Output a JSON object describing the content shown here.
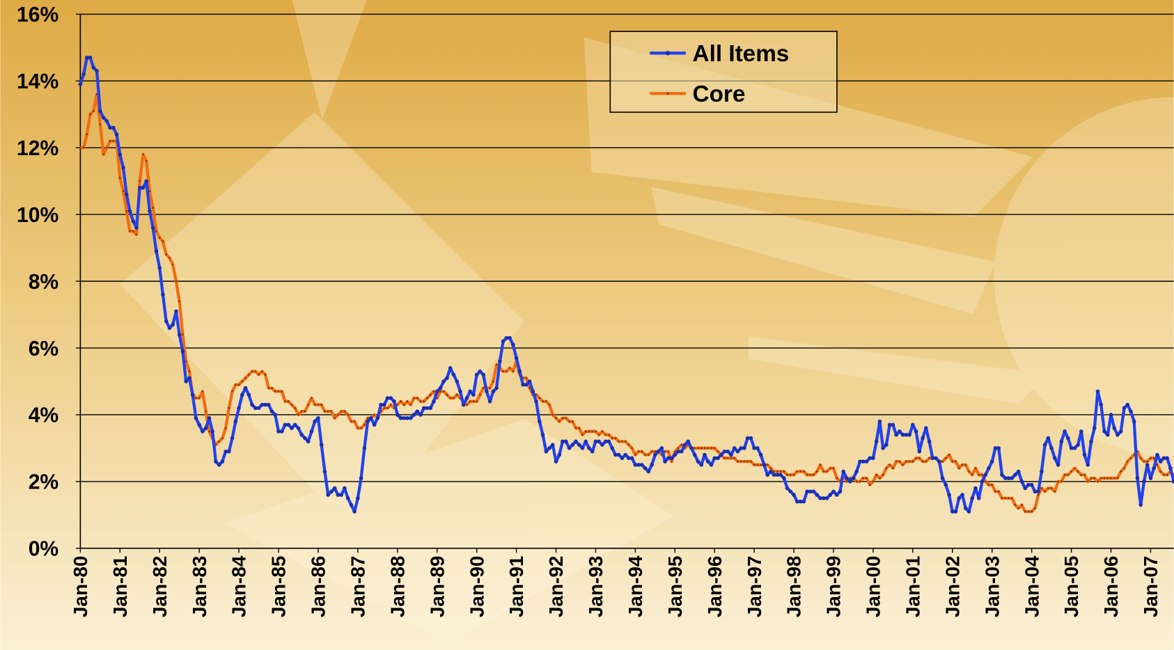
{
  "chart_data": {
    "type": "line",
    "categories": [
      "Jan-80",
      null,
      null,
      null,
      null,
      null,
      null,
      null,
      null,
      null,
      null,
      null,
      "Jan-81",
      null,
      null,
      null,
      null,
      null,
      null,
      null,
      null,
      null,
      null,
      null,
      "Jan-82",
      null,
      null,
      null,
      null,
      null,
      null,
      null,
      null,
      null,
      null,
      null,
      "Jan-83",
      null,
      null,
      null,
      null,
      null,
      null,
      null,
      null,
      null,
      null,
      null,
      "Jan-84",
      null,
      null,
      null,
      null,
      null,
      null,
      null,
      null,
      null,
      null,
      null,
      "Jan-85",
      null,
      null,
      null,
      null,
      null,
      null,
      null,
      null,
      null,
      null,
      null,
      "Jan-86",
      null,
      null,
      null,
      null,
      null,
      null,
      null,
      null,
      null,
      null,
      null,
      "Jan-87",
      null,
      null,
      null,
      null,
      null,
      null,
      null,
      null,
      null,
      null,
      null,
      "Jan-88",
      null,
      null,
      null,
      null,
      null,
      null,
      null,
      null,
      null,
      null,
      null,
      "Jan-89",
      null,
      null,
      null,
      null,
      null,
      null,
      null,
      null,
      null,
      null,
      null,
      "Jan-90",
      null,
      null,
      null,
      null,
      null,
      null,
      null,
      null,
      null,
      null,
      null,
      "Jan-91",
      null,
      null,
      null,
      null,
      null,
      null,
      null,
      null,
      null,
      null,
      null,
      "Jan-92",
      null,
      null,
      null,
      null,
      null,
      null,
      null,
      null,
      null,
      null,
      null,
      "Jan-93",
      null,
      null,
      null,
      null,
      null,
      null,
      null,
      null,
      null,
      null,
      null,
      "Jan-94",
      null,
      null,
      null,
      null,
      null,
      null,
      null,
      null,
      null,
      null,
      null,
      "Jan-95",
      null,
      null,
      null,
      null,
      null,
      null,
      null,
      null,
      null,
      null,
      null,
      "Jan-96",
      null,
      null,
      null,
      null,
      null,
      null,
      null,
      null,
      null,
      null,
      null,
      "Jan-97",
      null,
      null,
      null,
      null,
      null,
      null,
      null,
      null,
      null,
      null,
      null,
      "Jan-98",
      null,
      null,
      null,
      null,
      null,
      null,
      null,
      null,
      null,
      null,
      null,
      "Jan-99",
      null,
      null,
      null,
      null,
      null,
      null,
      null,
      null,
      null,
      null,
      null,
      "Jan-00",
      null,
      null,
      null,
      null,
      null,
      null,
      null,
      null,
      null,
      null,
      null,
      "Jan-01",
      null,
      null,
      null,
      null,
      null,
      null,
      null,
      null,
      null,
      null,
      null,
      "Jan-02",
      null,
      null,
      null,
      null,
      null,
      null,
      null,
      null,
      null,
      null,
      null,
      "Jan-03",
      null,
      null,
      null,
      null,
      null,
      null,
      null,
      null,
      null,
      null,
      null,
      "Jan-04",
      null,
      null,
      null,
      null,
      null,
      null,
      null,
      null,
      null,
      null,
      null,
      "Jan-05",
      null,
      null,
      null,
      null,
      null,
      null,
      null,
      null,
      null,
      null,
      null,
      "Jan-06",
      null,
      null,
      null,
      null,
      null,
      null,
      null,
      null,
      null,
      null,
      null,
      "Jan-07",
      null,
      null,
      null,
      null,
      null,
      null,
      null
    ],
    "series": [
      {
        "name": "All Items",
        "color": "#2142f0",
        "values": [
          13.9,
          14.2,
          14.7,
          14.7,
          14.4,
          14.3,
          13.1,
          12.9,
          12.8,
          12.6,
          12.6,
          12.4,
          11.8,
          11.4,
          10.6,
          10.1,
          9.8,
          9.6,
          10.8,
          10.8,
          11.0,
          10.1,
          9.6,
          8.9,
          8.4,
          7.6,
          6.8,
          6.6,
          6.7,
          7.1,
          6.4,
          5.9,
          5.0,
          5.1,
          4.6,
          3.9,
          3.7,
          3.5,
          3.6,
          3.9,
          3.5,
          2.6,
          2.5,
          2.6,
          2.9,
          2.9,
          3.3,
          3.8,
          4.2,
          4.6,
          4.8,
          4.6,
          4.3,
          4.2,
          4.2,
          4.3,
          4.3,
          4.3,
          4.1,
          4.0,
          3.5,
          3.5,
          3.7,
          3.7,
          3.6,
          3.7,
          3.6,
          3.4,
          3.3,
          3.2,
          3.5,
          3.8,
          3.9,
          3.1,
          2.3,
          1.6,
          1.7,
          1.8,
          1.6,
          1.6,
          1.8,
          1.5,
          1.3,
          1.1,
          1.5,
          2.1,
          3.0,
          3.8,
          3.9,
          3.7,
          3.9,
          4.3,
          4.3,
          4.5,
          4.5,
          4.4,
          4.0,
          3.9,
          3.9,
          3.9,
          3.9,
          4.0,
          4.1,
          4.0,
          4.2,
          4.2,
          4.2,
          4.4,
          4.7,
          4.8,
          5.0,
          5.1,
          5.4,
          5.2,
          5.0,
          4.7,
          4.3,
          4.5,
          4.7,
          4.6,
          5.2,
          5.3,
          5.2,
          4.7,
          4.4,
          4.7,
          4.8,
          5.6,
          6.2,
          6.3,
          6.3,
          6.1,
          5.7,
          5.3,
          4.9,
          4.9,
          5.0,
          4.7,
          4.4,
          3.8,
          3.4,
          2.9,
          3.0,
          3.1,
          2.6,
          2.8,
          3.2,
          3.2,
          3.0,
          3.1,
          3.2,
          3.1,
          3.0,
          3.2,
          3.0,
          2.9,
          3.2,
          3.2,
          3.1,
          3.2,
          3.2,
          3.0,
          2.8,
          2.8,
          2.7,
          2.8,
          2.7,
          2.7,
          2.5,
          2.5,
          2.5,
          2.4,
          2.3,
          2.5,
          2.8,
          2.9,
          3.0,
          2.6,
          2.7,
          2.7,
          2.8,
          2.9,
          2.9,
          3.1,
          3.2,
          3.0,
          2.8,
          2.6,
          2.5,
          2.8,
          2.6,
          2.5,
          2.7,
          2.7,
          2.8,
          2.9,
          2.9,
          2.8,
          3.0,
          2.9,
          3.0,
          3.0,
          3.3,
          3.3,
          3.0,
          3.0,
          2.8,
          2.5,
          2.2,
          2.3,
          2.2,
          2.2,
          2.2,
          2.1,
          1.8,
          1.7,
          1.6,
          1.4,
          1.4,
          1.4,
          1.7,
          1.7,
          1.7,
          1.6,
          1.5,
          1.5,
          1.5,
          1.6,
          1.7,
          1.6,
          1.7,
          2.3,
          2.1,
          2.0,
          2.1,
          2.3,
          2.6,
          2.6,
          2.6,
          2.7,
          2.7,
          3.2,
          3.8,
          3.0,
          3.1,
          3.7,
          3.7,
          3.4,
          3.5,
          3.4,
          3.4,
          3.4,
          3.7,
          3.5,
          2.9,
          3.3,
          3.6,
          3.2,
          2.7,
          2.7,
          2.6,
          2.1,
          1.9,
          1.6,
          1.1,
          1.1,
          1.5,
          1.6,
          1.2,
          1.1,
          1.5,
          1.8,
          1.5,
          2.0,
          2.2,
          2.4,
          2.6,
          3.0,
          3.0,
          2.2,
          2.1,
          2.1,
          2.1,
          2.2,
          2.3,
          2.0,
          1.8,
          1.9,
          1.9,
          1.7,
          1.7,
          2.3,
          3.1,
          3.3,
          3.0,
          2.7,
          2.5,
          3.2,
          3.5,
          3.3,
          3.0,
          3.0,
          3.1,
          3.5,
          2.8,
          2.5,
          3.2,
          3.6,
          4.7,
          4.3,
          3.5,
          3.4,
          4.0,
          3.6,
          3.4,
          3.5,
          4.2,
          4.3,
          4.1,
          3.8,
          2.1,
          1.3,
          2.0,
          2.5,
          2.1,
          2.4,
          2.8,
          2.6,
          2.7,
          2.7,
          2.4,
          2.0
        ]
      },
      {
        "name": "Core",
        "color": "#f26b10",
        "values": [
          12.0,
          12.0,
          12.4,
          13.0,
          13.1,
          13.6,
          12.7,
          11.8,
          12.0,
          12.2,
          12.2,
          12.2,
          11.1,
          10.7,
          10.1,
          9.5,
          9.5,
          9.4,
          11.0,
          11.8,
          11.6,
          10.7,
          10.2,
          9.5,
          9.3,
          9.2,
          8.8,
          8.7,
          8.5,
          8.0,
          7.4,
          6.4,
          5.6,
          5.3,
          4.6,
          4.5,
          4.5,
          4.7,
          4.1,
          3.5,
          3.3,
          3.1,
          3.2,
          3.3,
          3.6,
          4.2,
          4.7,
          4.9,
          4.9,
          5.0,
          5.1,
          5.2,
          5.3,
          5.3,
          5.2,
          5.3,
          5.2,
          4.8,
          4.8,
          4.7,
          4.7,
          4.7,
          4.4,
          4.4,
          4.3,
          4.2,
          4.0,
          4.1,
          4.1,
          4.3,
          4.5,
          4.3,
          4.3,
          4.3,
          4.1,
          4.1,
          4.1,
          3.9,
          4.0,
          4.1,
          4.1,
          4.0,
          3.8,
          3.8,
          3.6,
          3.6,
          3.7,
          3.9,
          3.9,
          4.0,
          3.9,
          4.1,
          4.2,
          4.2,
          4.3,
          4.2,
          4.3,
          4.4,
          4.3,
          4.4,
          4.3,
          4.5,
          4.5,
          4.4,
          4.4,
          4.5,
          4.6,
          4.7,
          4.5,
          4.7,
          4.7,
          4.6,
          4.5,
          4.5,
          4.6,
          4.5,
          4.4,
          4.3,
          4.4,
          4.4,
          4.4,
          4.6,
          4.8,
          4.8,
          4.8,
          5.0,
          5.5,
          5.4,
          5.3,
          5.3,
          5.4,
          5.3,
          5.6,
          5.2,
          5.1,
          5.1,
          4.8,
          4.6,
          4.6,
          4.5,
          4.4,
          4.4,
          4.3,
          4.0,
          3.9,
          3.8,
          3.9,
          3.9,
          3.8,
          3.8,
          3.6,
          3.6,
          3.4,
          3.5,
          3.5,
          3.5,
          3.5,
          3.4,
          3.5,
          3.4,
          3.4,
          3.3,
          3.3,
          3.2,
          3.2,
          3.2,
          3.1,
          3.0,
          2.8,
          2.9,
          2.9,
          2.8,
          2.8,
          2.9,
          2.9,
          2.9,
          2.8,
          2.9,
          2.9,
          2.6,
          2.9,
          3.0,
          3.1,
          3.0,
          3.1,
          3.0,
          3.0,
          3.0,
          3.0,
          3.0,
          3.0,
          3.0,
          3.0,
          2.9,
          2.8,
          2.7,
          2.7,
          2.7,
          2.7,
          2.6,
          2.6,
          2.6,
          2.6,
          2.6,
          2.5,
          2.5,
          2.5,
          2.5,
          2.5,
          2.4,
          2.3,
          2.3,
          2.3,
          2.3,
          2.2,
          2.2,
          2.2,
          2.3,
          2.3,
          2.3,
          2.2,
          2.2,
          2.2,
          2.3,
          2.5,
          2.3,
          2.3,
          2.4,
          2.4,
          2.1,
          2.0,
          2.2,
          2.0,
          2.1,
          2.1,
          2.0,
          2.0,
          2.1,
          2.1,
          1.9,
          2.0,
          2.2,
          2.1,
          2.2,
          2.4,
          2.5,
          2.4,
          2.6,
          2.6,
          2.5,
          2.6,
          2.6,
          2.6,
          2.7,
          2.7,
          2.6,
          2.6,
          2.7,
          2.7,
          2.7,
          2.6,
          2.6,
          2.7,
          2.8,
          2.6,
          2.6,
          2.4,
          2.5,
          2.5,
          2.3,
          2.2,
          2.4,
          2.2,
          2.2,
          2.0,
          1.9,
          1.9,
          1.7,
          1.7,
          1.5,
          1.5,
          1.5,
          1.5,
          1.3,
          1.2,
          1.3,
          1.1,
          1.1,
          1.1,
          1.2,
          1.6,
          1.8,
          1.7,
          1.8,
          1.8,
          1.7,
          2.0,
          2.0,
          2.2,
          2.2,
          2.3,
          2.4,
          2.3,
          2.2,
          2.2,
          2.0,
          2.1,
          2.1,
          2.0,
          2.1,
          2.1,
          2.1,
          2.1,
          2.1,
          2.1,
          2.3,
          2.4,
          2.6,
          2.7,
          2.8,
          2.9,
          2.7,
          2.6,
          2.6,
          2.7,
          2.7,
          2.5,
          2.3,
          2.2,
          2.2,
          2.3,
          2.2
        ]
      }
    ],
    "ylim": [
      0,
      16
    ],
    "yticks": [
      {
        "value": 0,
        "label": "0%"
      },
      {
        "value": 2,
        "label": "2%"
      },
      {
        "value": 4,
        "label": "4%"
      },
      {
        "value": 6,
        "label": "6%"
      },
      {
        "value": 8,
        "label": "8%"
      },
      {
        "value": 10,
        "label": "10%"
      },
      {
        "value": 12,
        "label": "12%"
      },
      {
        "value": 14,
        "label": "14%"
      },
      {
        "value": 16,
        "label": "16%"
      }
    ],
    "grid": true,
    "legend": "top-center"
  }
}
